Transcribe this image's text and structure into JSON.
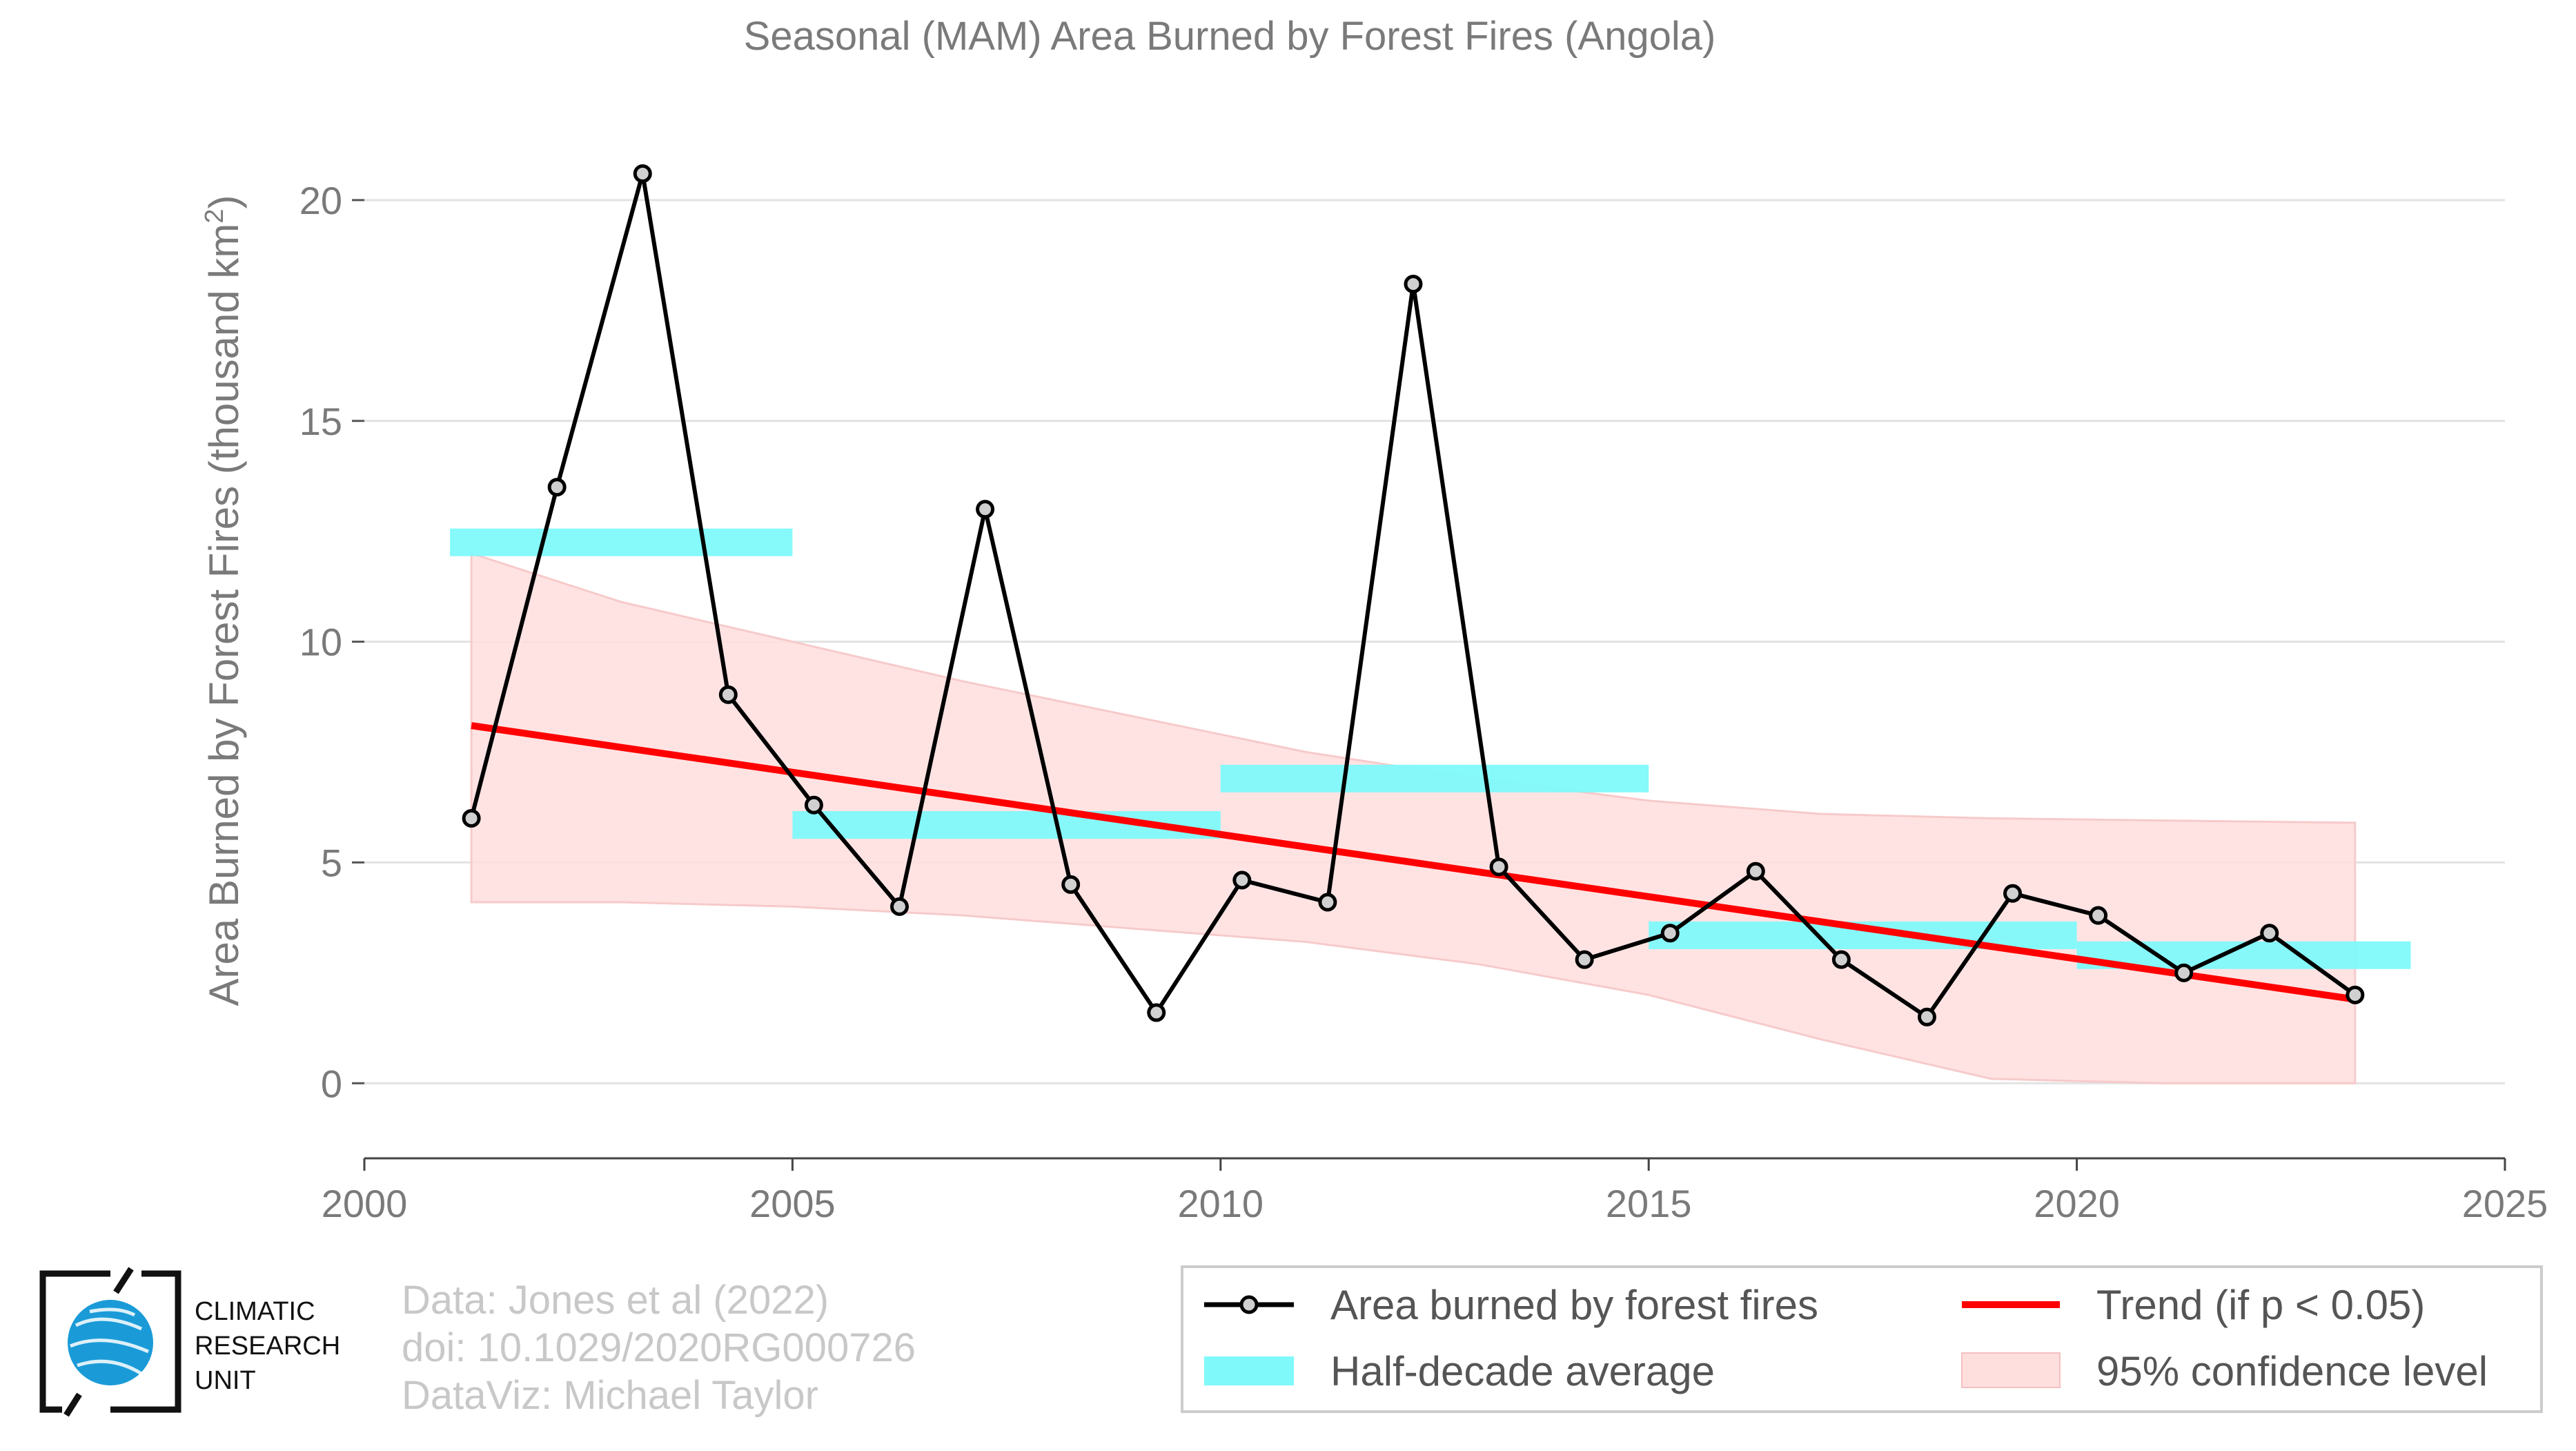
{
  "chart_data": {
    "type": "line",
    "title": "Seasonal (MAM) Area Burned by Forest Fires (Angola)",
    "ylabel": "Area Burned by Forest Fires (thousand km",
    "ylabel_sup": "2",
    "ylabel_end": ")",
    "xlabel": "",
    "xlim": [
      2000,
      2025
    ],
    "ylim": [
      -1.7,
      22.5
    ],
    "x_ticks": [
      2000,
      2005,
      2010,
      2015,
      2020,
      2025
    ],
    "x_tick_labels": [
      "2000",
      "2005",
      "2010",
      "2015",
      "2020",
      "2025"
    ],
    "y_ticks": [
      0,
      5,
      10,
      15,
      20
    ],
    "y_tick_labels": [
      "0",
      "5",
      "10",
      "15",
      "20"
    ],
    "grid": "horizontal",
    "legend_position": "bottom-right",
    "series": [
      {
        "name": "Area burned by forest fires",
        "color": "#000000",
        "x": [
          2001.25,
          2002.25,
          2003.25,
          2004.25,
          2005.25,
          2006.25,
          2007.25,
          2008.25,
          2009.25,
          2010.25,
          2011.25,
          2012.25,
          2013.25,
          2014.25,
          2015.25,
          2016.25,
          2017.25,
          2018.25,
          2019.25,
          2020.25,
          2021.25,
          2022.25,
          2023.25
        ],
        "values": [
          6.0,
          13.5,
          20.6,
          8.8,
          6.3,
          4.0,
          13.0,
          4.5,
          1.6,
          4.6,
          4.1,
          18.1,
          4.9,
          2.8,
          3.4,
          4.8,
          2.8,
          1.5,
          4.3,
          3.8,
          2.5,
          3.4,
          2.0
        ]
      },
      {
        "name": "Half-decade average",
        "color": "#7ff9fa",
        "segments": [
          {
            "x_start": 2001.0,
            "x_end": 2005.0,
            "value": 12.25
          },
          {
            "x_start": 2005.0,
            "x_end": 2010.0,
            "value": 5.85
          },
          {
            "x_start": 2010.0,
            "x_end": 2015.0,
            "value": 6.9
          },
          {
            "x_start": 2015.0,
            "x_end": 2020.0,
            "value": 3.35
          },
          {
            "x_start": 2020.0,
            "x_end": 2023.9,
            "value": 2.9
          }
        ]
      },
      {
        "name": "Trend (if p < 0.05)",
        "color": "#ff0000",
        "x": [
          2001.25,
          2023.25
        ],
        "values": [
          8.1,
          1.9
        ]
      },
      {
        "name": "95% confidence level",
        "color": "#ffdede",
        "x": [
          2001.25,
          2003,
          2005,
          2007,
          2009,
          2011,
          2013,
          2015,
          2017,
          2019,
          2021,
          2023.25
        ],
        "upper": [
          12.0,
          10.9,
          10.0,
          9.1,
          8.3,
          7.5,
          6.9,
          6.4,
          6.1,
          6.0,
          5.95,
          5.9
        ],
        "lower": [
          4.1,
          4.1,
          4.0,
          3.8,
          3.5,
          3.2,
          2.7,
          2.0,
          1.0,
          0.1,
          0.0,
          0.0
        ]
      }
    ],
    "credits": [
      "Data: Jones et al (2022)",
      "doi: 10.1029/2020RG000726",
      "DataViz: Michael Taylor"
    ],
    "logo_lines": [
      "CLIMATIC",
      "RESEARCH",
      "UNIT"
    ],
    "logo_globe_color": "#1a9bd8"
  }
}
